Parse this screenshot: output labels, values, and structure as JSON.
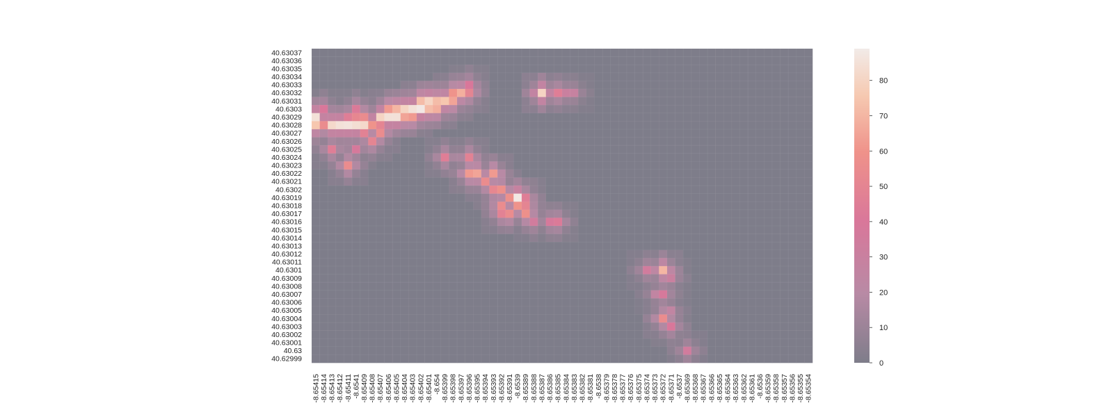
{
  "chart_data": {
    "type": "heatmap",
    "title": "",
    "xlabel": "",
    "ylabel": "",
    "grid": true,
    "legend": "colorbar-right",
    "x_categories": [
      "-8.65415",
      "-8.65414",
      "-8.65413",
      "-8.65412",
      "-8.65411",
      "-8.6541",
      "-8.65409",
      "-8.65408",
      "-8.65407",
      "-8.65406",
      "-8.65405",
      "-8.65404",
      "-8.65403",
      "-8.65402",
      "-8.65401",
      "-8.654",
      "-8.65399",
      "-8.65398",
      "-8.65397",
      "-8.65396",
      "-8.65395",
      "-8.65394",
      "-8.65393",
      "-8.65392",
      "-8.65391",
      "-8.6539",
      "-8.65389",
      "-8.65388",
      "-8.65387",
      "-8.65386",
      "-8.65385",
      "-8.65384",
      "-8.65383",
      "-8.65382",
      "-8.65381",
      "-8.6538",
      "-8.65379",
      "-8.65378",
      "-8.65377",
      "-8.65376",
      "-8.65375",
      "-8.65374",
      "-8.65373",
      "-8.65372",
      "-8.65371",
      "-8.6537",
      "-8.65369",
      "-8.65368",
      "-8.65367",
      "-8.65366",
      "-8.65365",
      "-8.65364",
      "-8.65363",
      "-8.65362",
      "-8.65361",
      "-8.6536",
      "-8.65359",
      "-8.65358",
      "-8.65357",
      "-8.65356",
      "-8.65355",
      "-8.65354"
    ],
    "y_categories": [
      "40.63037",
      "40.63036",
      "40.63035",
      "40.63034",
      "40.63033",
      "40.63032",
      "40.63031",
      "40.6303",
      "40.63029",
      "40.63028",
      "40.63027",
      "40.63026",
      "40.63025",
      "40.63024",
      "40.63023",
      "40.63022",
      "40.63021",
      "40.6302",
      "40.63019",
      "40.63018",
      "40.63017",
      "40.63016",
      "40.63015",
      "40.63014",
      "40.63013",
      "40.63012",
      "40.63011",
      "40.6301",
      "40.63009",
      "40.63008",
      "40.63007",
      "40.63006",
      "40.63005",
      "40.63004",
      "40.63003",
      "40.63002",
      "40.63001",
      "40.63",
      "40.62999"
    ],
    "hotspots": [
      {
        "x": "-8.65415",
        "y": "40.63029",
        "value": 85
      },
      {
        "x": "-8.65415",
        "y": "40.63028",
        "value": 75
      },
      {
        "x": "-8.65414",
        "y": "40.63028",
        "value": 55
      },
      {
        "x": "-8.65413",
        "y": "40.63028",
        "value": 82
      },
      {
        "x": "-8.65412",
        "y": "40.63028",
        "value": 85
      },
      {
        "x": "-8.65411",
        "y": "40.63028",
        "value": 86
      },
      {
        "x": "-8.6541",
        "y": "40.63028",
        "value": 84
      },
      {
        "x": "-8.65409",
        "y": "40.63028",
        "value": 82
      },
      {
        "x": "-8.65408",
        "y": "40.63028",
        "value": 60
      },
      {
        "x": "-8.65407",
        "y": "40.63028",
        "value": 50
      },
      {
        "x": "-8.65409",
        "y": "40.63029",
        "value": 55
      },
      {
        "x": "-8.6541",
        "y": "40.63029",
        "value": 52
      },
      {
        "x": "-8.65407",
        "y": "40.63029",
        "value": 80
      },
      {
        "x": "-8.65406",
        "y": "40.63029",
        "value": 85
      },
      {
        "x": "-8.65405",
        "y": "40.63029",
        "value": 85
      },
      {
        "x": "-8.65404",
        "y": "40.63029",
        "value": 65
      },
      {
        "x": "-8.65403",
        "y": "40.63029",
        "value": 62
      },
      {
        "x": "-8.65404",
        "y": "40.6303",
        "value": 80
      },
      {
        "x": "-8.65403",
        "y": "40.6303",
        "value": 85
      },
      {
        "x": "-8.65402",
        "y": "40.6303",
        "value": 88
      },
      {
        "x": "-8.65401",
        "y": "40.6303",
        "value": 72
      },
      {
        "x": "-8.654",
        "y": "40.6303",
        "value": 68
      },
      {
        "x": "-8.65405",
        "y": "40.6303",
        "value": 70
      },
      {
        "x": "-8.65406",
        "y": "40.6303",
        "value": 62
      },
      {
        "x": "-8.65402",
        "y": "40.63031",
        "value": 72
      },
      {
        "x": "-8.65401",
        "y": "40.63031",
        "value": 80
      },
      {
        "x": "-8.654",
        "y": "40.63031",
        "value": 72
      },
      {
        "x": "-8.65399",
        "y": "40.63031",
        "value": 75
      },
      {
        "x": "-8.65398",
        "y": "40.63031",
        "value": 65
      },
      {
        "x": "-8.65398",
        "y": "40.63032",
        "value": 60
      },
      {
        "x": "-8.65397",
        "y": "40.63032",
        "value": 68
      },
      {
        "x": "-8.65396",
        "y": "40.63032",
        "value": 50
      },
      {
        "x": "-8.65396",
        "y": "40.63033",
        "value": 40
      },
      {
        "x": "-8.65387",
        "y": "40.63032",
        "value": 80
      },
      {
        "x": "-8.65385",
        "y": "40.63032",
        "value": 45
      },
      {
        "x": "-8.65384",
        "y": "40.63032",
        "value": 30
      },
      {
        "x": "-8.65383",
        "y": "40.63032",
        "value": 28
      },
      {
        "x": "-8.65414",
        "y": "40.6303",
        "value": 40
      },
      {
        "x": "-8.6541",
        "y": "40.6303",
        "value": 42
      },
      {
        "x": "-8.65411",
        "y": "40.63029",
        "value": 45
      },
      {
        "x": "-8.65413",
        "y": "40.63025",
        "value": 45
      },
      {
        "x": "-8.65408",
        "y": "40.63026",
        "value": 50
      },
      {
        "x": "-8.65409",
        "y": "40.63027",
        "value": 48
      },
      {
        "x": "-8.65407",
        "y": "40.63027",
        "value": 55
      },
      {
        "x": "-8.6541",
        "y": "40.63025",
        "value": 38
      },
      {
        "x": "-8.65411",
        "y": "40.63023",
        "value": 55
      },
      {
        "x": "-8.65396",
        "y": "40.63024",
        "value": 48
      },
      {
        "x": "-8.65399",
        "y": "40.63024",
        "value": 45
      },
      {
        "x": "-8.65396",
        "y": "40.63022",
        "value": 62
      },
      {
        "x": "-8.65395",
        "y": "40.63022",
        "value": 65
      },
      {
        "x": "-8.65393",
        "y": "40.63022",
        "value": 62
      },
      {
        "x": "-8.65394",
        "y": "40.63021",
        "value": 55
      },
      {
        "x": "-8.65392",
        "y": "40.6302",
        "value": 58
      },
      {
        "x": "-8.65393",
        "y": "40.6302",
        "value": 52
      },
      {
        "x": "-8.65391",
        "y": "40.63019",
        "value": 58
      },
      {
        "x": "-8.6539",
        "y": "40.63019",
        "value": 88
      },
      {
        "x": "-8.65389",
        "y": "40.63019",
        "value": 45
      },
      {
        "x": "-8.65392",
        "y": "40.63018",
        "value": 55
      },
      {
        "x": "-8.6539",
        "y": "40.63018",
        "value": 60
      },
      {
        "x": "-8.65389",
        "y": "40.63018",
        "value": 50
      },
      {
        "x": "-8.65391",
        "y": "40.63017",
        "value": 55
      },
      {
        "x": "-8.65389",
        "y": "40.63017",
        "value": 58
      },
      {
        "x": "-8.65392",
        "y": "40.63017",
        "value": 48
      },
      {
        "x": "-8.65385",
        "y": "40.63016",
        "value": 42
      },
      {
        "x": "-8.65386",
        "y": "40.63016",
        "value": 38
      },
      {
        "x": "-8.65388",
        "y": "40.63016",
        "value": 35
      },
      {
        "x": "-8.65374",
        "y": "40.6301",
        "value": 35
      },
      {
        "x": "-8.65372",
        "y": "40.6301",
        "value": 70
      },
      {
        "x": "-8.65371",
        "y": "40.63009",
        "value": 30
      },
      {
        "x": "-8.65373",
        "y": "40.63007",
        "value": 25
      },
      {
        "x": "-8.65372",
        "y": "40.63007",
        "value": 38
      },
      {
        "x": "-8.65371",
        "y": "40.63005",
        "value": 25
      },
      {
        "x": "-8.65372",
        "y": "40.63004",
        "value": 55
      },
      {
        "x": "-8.65371",
        "y": "40.63003",
        "value": 40
      },
      {
        "x": "-8.65369",
        "y": "40.63",
        "value": 35
      }
    ],
    "colorbar": {
      "min": 0,
      "max": 89,
      "ticks": [
        "0",
        "10",
        "20",
        "30",
        "40",
        "50",
        "60",
        "70",
        "80"
      ],
      "colors": [
        "#7e7d8a",
        "#b88aa5",
        "#d9779a",
        "#ef928a",
        "#f6c9b1",
        "#f2ebe8"
      ]
    }
  }
}
